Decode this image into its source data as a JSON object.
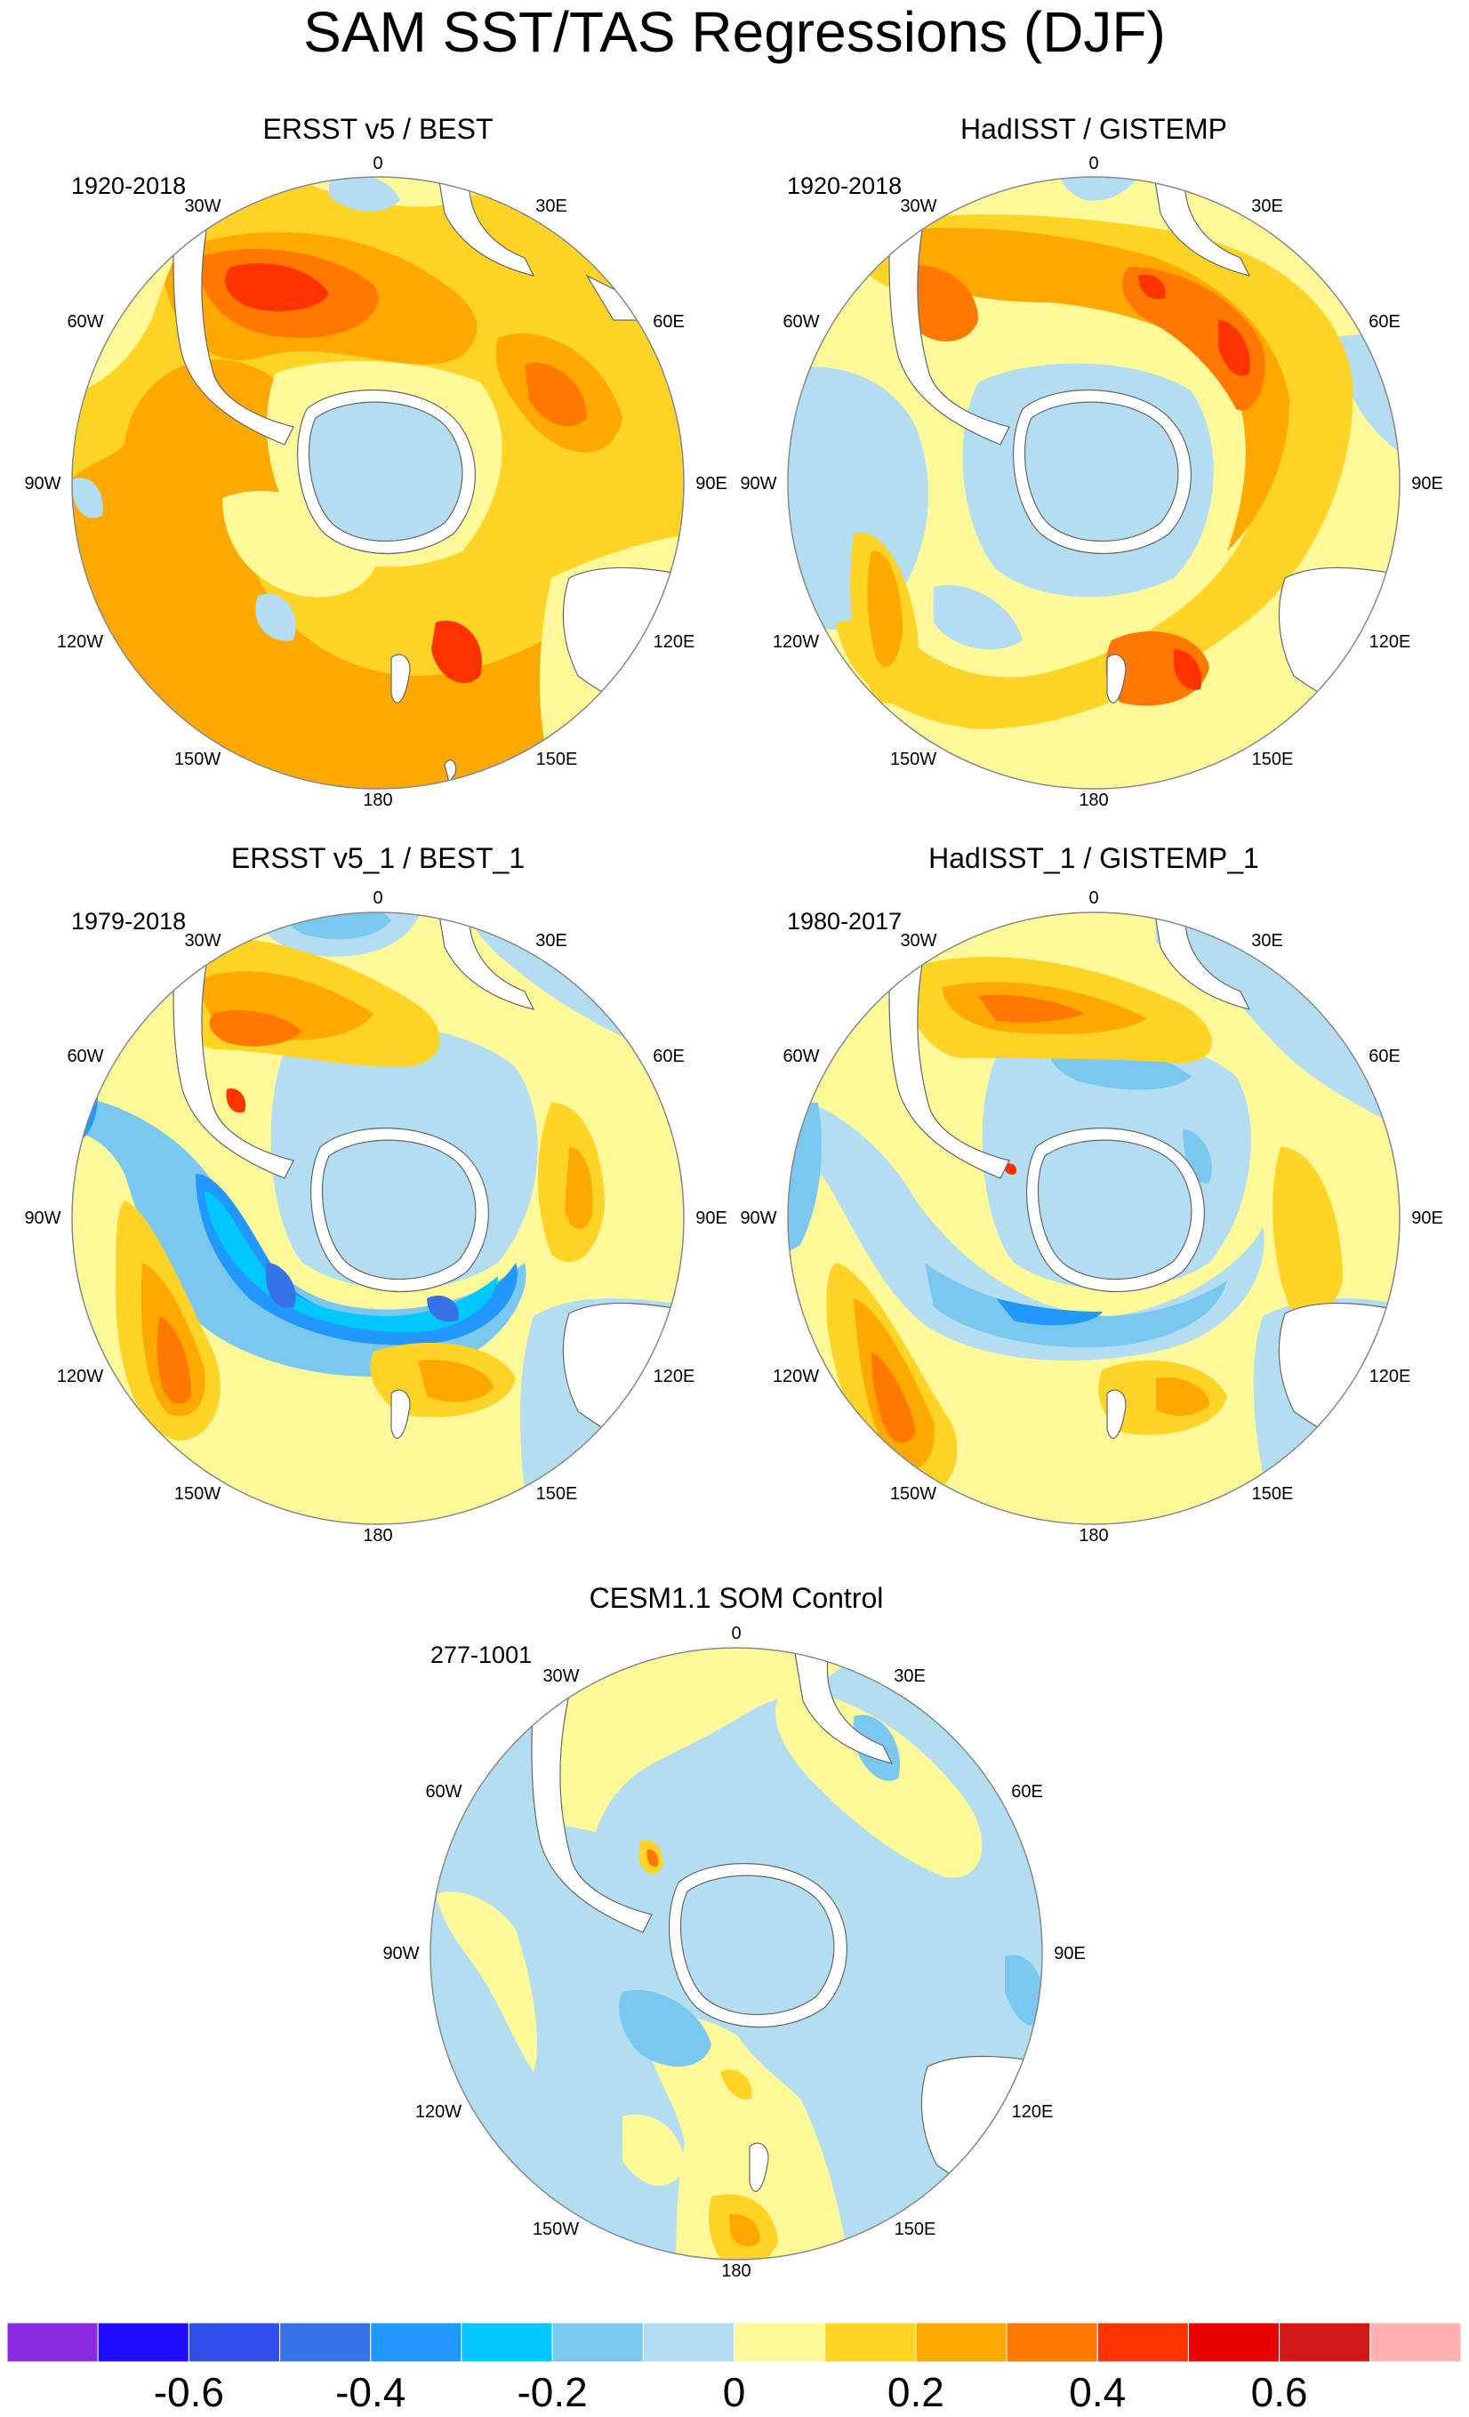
{
  "title": "SAM SST/TAS Regressions (DJF)",
  "lon_labels": {
    "top": "0",
    "tr1": "30E",
    "tr2": "60E",
    "right": "90E",
    "br2": "120E",
    "br1": "150E",
    "bottom": "180",
    "bl1": "150W",
    "bl2": "120W",
    "left": "90W",
    "tl2": "60W",
    "tl1": "30W"
  },
  "panels": [
    {
      "id": "p1",
      "title": "ERSST v5 / BEST",
      "period": "1920-2018"
    },
    {
      "id": "p2",
      "title": "HadISST / GISTEMP",
      "period": "1920-2018"
    },
    {
      "id": "p3",
      "title": "ERSST v5_1 / BEST_1",
      "period": "1979-2018"
    },
    {
      "id": "p4",
      "title": "HadISST_1 / GISTEMP_1",
      "period": "1980-2017"
    },
    {
      "id": "p5",
      "title": "CESM1.1 SOM Control",
      "period": "277-1001"
    }
  ],
  "colorbar": {
    "colors": [
      "#8a2be2",
      "#1e0dff",
      "#2f4fe8",
      "#3574e8",
      "#2098ff",
      "#00c8ff",
      "#7ac8f0",
      "#b3def2",
      "#fff99a",
      "#ffd426",
      "#ffa800",
      "#ff7800",
      "#ff3300",
      "#e80000",
      "#d01a1a",
      "#ffb0b0"
    ],
    "labels": [
      "-0.6",
      "-0.4",
      "-0.2",
      "0",
      "0.2",
      "0.4",
      "0.6"
    ]
  },
  "palette": {
    "neg2": "#7ac8f0",
    "neg1": "#b3def2",
    "zero": "#fff99a",
    "pos1": "#ffd426",
    "pos2": "#ffa800",
    "pos3": "#ff7800",
    "pos4": "#ff3300",
    "pos5": "#e80000",
    "land": "#ffffff",
    "coast": "#666666",
    "negdeep": "#3574e8",
    "negmid": "#2098ff",
    "negcyan": "#00c8ff"
  }
}
